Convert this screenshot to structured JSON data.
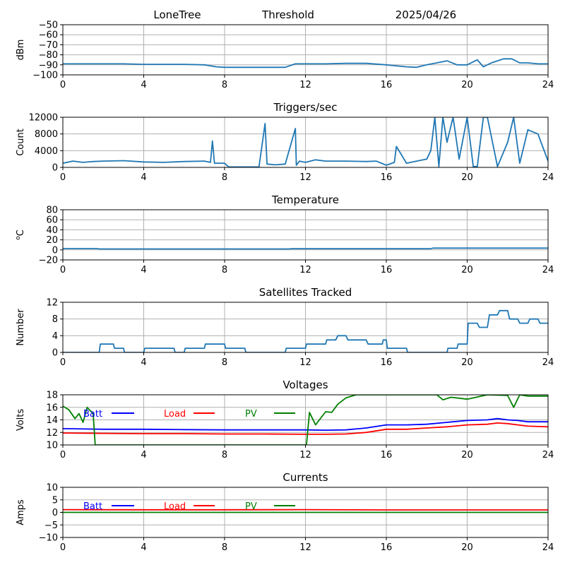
{
  "header": {
    "station": "LoneTree",
    "mode": "Threshold",
    "date": "2025/04/26"
  },
  "chart_data": [
    {
      "id": "dbm",
      "type": "line",
      "title": "",
      "ylabel": "dBm",
      "xlim": [
        0,
        24
      ],
      "ylim": [
        -100,
        -50
      ],
      "xticks": [
        0,
        4,
        8,
        12,
        16,
        20,
        24
      ],
      "yticks": [
        -100,
        -90,
        -80,
        -70,
        -60,
        -50
      ],
      "grid": true,
      "series": [
        {
          "color": "#1f77b4",
          "x": [
            0,
            1,
            2,
            3,
            4,
            5,
            6,
            7,
            7.6,
            8,
            9,
            10,
            11,
            11.5,
            12,
            13,
            14,
            15,
            16,
            17,
            17.5,
            18,
            18.5,
            19,
            19.5,
            20,
            20.5,
            20.8,
            21.2,
            21.8,
            22.2,
            22.6,
            23,
            23.5,
            24
          ],
          "y": [
            -89,
            -89,
            -89,
            -89,
            -89.5,
            -89.5,
            -89.5,
            -90,
            -92,
            -92.5,
            -92.5,
            -92.5,
            -92.5,
            -89,
            -89,
            -89,
            -88.5,
            -88.5,
            -90,
            -92,
            -92.5,
            -90,
            -88,
            -86,
            -90,
            -90,
            -85,
            -92,
            -88,
            -84,
            -84,
            -88,
            -88,
            -89,
            -89
          ]
        }
      ]
    },
    {
      "id": "triggers",
      "type": "line",
      "title": "Triggers/sec",
      "ylabel": "Count",
      "xlim": [
        0,
        24
      ],
      "ylim": [
        0,
        12000
      ],
      "xticks": [
        0,
        4,
        8,
        12,
        16,
        20,
        24
      ],
      "yticks": [
        0,
        4000,
        8000,
        12000
      ],
      "grid": true,
      "series": [
        {
          "color": "#1f77b4",
          "x": [
            0,
            0.5,
            1,
            1.5,
            2,
            3,
            4,
            5,
            6,
            7,
            7.3,
            7.4,
            7.5,
            8,
            8.2,
            9,
            9.7,
            10,
            10.1,
            10.5,
            11,
            11.5,
            11.55,
            11.7,
            12,
            12.5,
            13,
            14,
            15,
            15.5,
            16,
            16.4,
            16.5,
            17,
            17.5,
            18,
            18.2,
            18.4,
            18.6,
            18.8,
            19,
            19.3,
            19.6,
            20,
            20.3,
            20.5,
            20.8,
            21,
            21.5,
            22,
            22.3,
            22.6,
            23,
            23.5,
            24
          ],
          "y": [
            1000,
            1500,
            1200,
            1400,
            1500,
            1600,
            1300,
            1200,
            1400,
            1500,
            1200,
            6300,
            1000,
            1000,
            100,
            100,
            100,
            10500,
            800,
            600,
            800,
            9300,
            500,
            1500,
            1200,
            1800,
            1500,
            1500,
            1400,
            1500,
            500,
            1200,
            5000,
            1000,
            1500,
            2000,
            4000,
            12000,
            200,
            12000,
            6000,
            12000,
            2000,
            12000,
            200,
            200,
            12000,
            12000,
            200,
            6000,
            12000,
            1000,
            9000,
            8000,
            1500
          ]
        }
      ]
    },
    {
      "id": "temperature",
      "type": "line",
      "title": "Temperature",
      "ylabel": "oC",
      "xlim": [
        0,
        24
      ],
      "ylim": [
        -20,
        80
      ],
      "xticks": [
        0,
        4,
        8,
        12,
        16,
        20,
        24
      ],
      "yticks": [
        -20,
        0,
        20,
        40,
        60,
        80
      ],
      "grid": true,
      "series": [
        {
          "color": "#1f77b4",
          "x": [
            0,
            1.7,
            1.8,
            11.2,
            11.3,
            18.2,
            18.3,
            24
          ],
          "y": [
            2.5,
            2.5,
            1.8,
            1.8,
            2.2,
            2.2,
            3.5,
            3.5
          ]
        }
      ]
    },
    {
      "id": "satellites",
      "type": "line",
      "title": "Satellites Tracked",
      "ylabel": "Number",
      "xlim": [
        0,
        24
      ],
      "ylim": [
        0,
        12
      ],
      "xticks": [
        0,
        4,
        8,
        12,
        16,
        20,
        24
      ],
      "yticks": [
        0,
        4,
        8,
        12
      ],
      "grid": true,
      "series": [
        {
          "color": "#1f77b4",
          "x": [
            0,
            1.8,
            1.85,
            2.5,
            2.55,
            3,
            3.05,
            4,
            4.05,
            5.5,
            5.55,
            6,
            6.05,
            7,
            7.05,
            8,
            8.05,
            9,
            9.05,
            11,
            11.05,
            12,
            12.05,
            13,
            13.05,
            13.5,
            13.6,
            14,
            14.1,
            15,
            15.1,
            15.8,
            15.85,
            16,
            16.05,
            17,
            17.05,
            19,
            19.05,
            19.5,
            19.55,
            20,
            20.05,
            20.5,
            20.6,
            21,
            21.1,
            21.5,
            21.6,
            22,
            22.1,
            22.5,
            22.6,
            23,
            23.1,
            23.5,
            23.6,
            24
          ],
          "y": [
            0,
            0,
            2,
            2,
            1,
            1,
            0,
            0,
            1,
            1,
            0,
            0,
            1,
            1,
            2,
            2,
            1,
            1,
            0,
            0,
            1,
            1,
            2,
            2,
            3,
            3,
            4,
            4,
            3,
            3,
            2,
            2,
            3,
            3,
            1,
            1,
            0,
            0,
            1,
            1,
            2,
            2,
            7,
            7,
            6,
            6,
            9,
            9,
            10,
            10,
            8,
            8,
            7,
            7,
            8,
            8,
            7,
            7
          ]
        }
      ]
    },
    {
      "id": "voltages",
      "type": "line",
      "title": "Voltages",
      "ylabel": "Volts",
      "xlim": [
        0,
        24
      ],
      "ylim": [
        10,
        18
      ],
      "xticks": [
        0,
        4,
        8,
        12,
        16,
        20,
        24
      ],
      "yticks": [
        10,
        12,
        14,
        16,
        18
      ],
      "grid": true,
      "legend": [
        {
          "label": "Batt",
          "color": "#0000ff"
        },
        {
          "label": "Load",
          "color": "#ff0000"
        },
        {
          "label": "PV",
          "color": "#008000"
        }
      ],
      "series": [
        {
          "name": "Batt",
          "color": "#0000ff",
          "x": [
            0,
            2,
            4,
            6,
            8,
            10,
            12,
            13,
            14,
            15,
            16,
            17,
            18,
            19,
            20,
            21,
            21.5,
            22,
            22.5,
            23,
            24
          ],
          "y": [
            12.6,
            12.5,
            12.5,
            12.45,
            12.4,
            12.4,
            12.4,
            12.35,
            12.4,
            12.7,
            13.2,
            13.2,
            13.3,
            13.6,
            13.9,
            14.0,
            14.2,
            14.0,
            13.9,
            13.7,
            13.7
          ]
        },
        {
          "name": "Load",
          "color": "#ff0000",
          "x": [
            0,
            2,
            4,
            6,
            8,
            10,
            12,
            13,
            14,
            15,
            16,
            17,
            18,
            19,
            20,
            21,
            21.5,
            22,
            22.5,
            23,
            24
          ],
          "y": [
            11.9,
            11.85,
            11.8,
            11.8,
            11.75,
            11.75,
            11.7,
            11.7,
            11.75,
            12.0,
            12.5,
            12.5,
            12.7,
            12.9,
            13.2,
            13.3,
            13.5,
            13.4,
            13.2,
            13.0,
            12.9
          ]
        },
        {
          "name": "PV",
          "color": "#008000",
          "x": [
            0,
            0.3,
            0.6,
            0.8,
            1.0,
            1.2,
            1.5,
            1.6,
            12.05,
            12.2,
            12.5,
            13.0,
            13.3,
            13.6,
            14.0,
            14.5,
            18.5,
            18.8,
            19.2,
            20.0,
            21.0,
            22.0,
            22.3,
            22.6,
            23.0,
            24
          ],
          "y": [
            16.2,
            15.6,
            14.2,
            15.0,
            13.6,
            16.0,
            15.0,
            10.0,
            10.0,
            15.2,
            13.2,
            15.3,
            15.2,
            16.5,
            17.5,
            18.0,
            18.0,
            17.2,
            17.6,
            17.3,
            18.0,
            17.9,
            16.0,
            18.0,
            17.8,
            17.8
          ]
        }
      ]
    },
    {
      "id": "currents",
      "type": "line",
      "title": "Currents",
      "ylabel": "Amps",
      "xlim": [
        0,
        24
      ],
      "ylim": [
        -10,
        10
      ],
      "xticks": [
        0,
        4,
        8,
        12,
        16,
        20,
        24
      ],
      "yticks": [
        -10,
        -5,
        0,
        5,
        10
      ],
      "grid": true,
      "legend": [
        {
          "label": "Batt",
          "color": "#0000ff"
        },
        {
          "label": "Load",
          "color": "#ff0000"
        },
        {
          "label": "PV",
          "color": "#008000"
        }
      ],
      "series": [
        {
          "name": "Load",
          "color": "#ff0000",
          "x": [
            0,
            4,
            8,
            12,
            16,
            20,
            24
          ],
          "y": [
            1.1,
            1.05,
            1.05,
            1.1,
            1.0,
            1.0,
            1.0
          ]
        },
        {
          "name": "PV",
          "color": "#008000",
          "x": [
            0,
            24
          ],
          "y": [
            0,
            0
          ]
        }
      ]
    }
  ]
}
